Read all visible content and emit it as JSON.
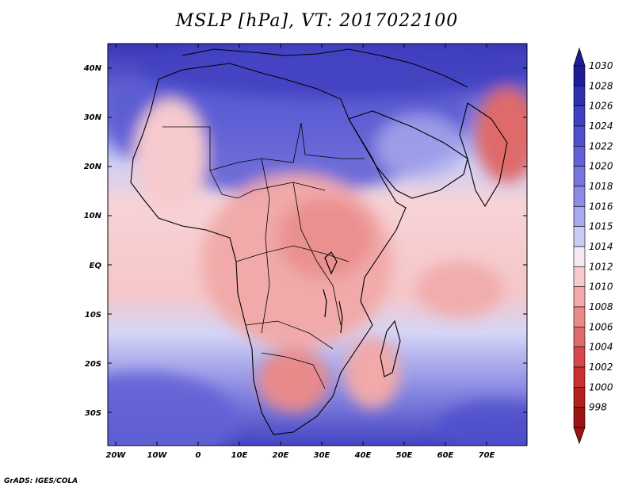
{
  "title": "MSLP [hPa], VT: 2017022100",
  "credit": "GrADS: IGES/COLA",
  "lon_ticks": [
    "20W",
    "10W",
    "0",
    "10E",
    "20E",
    "30E",
    "40E",
    "50E",
    "60E",
    "70E"
  ],
  "lat_ticks": [
    "40N",
    "30N",
    "20N",
    "10N",
    "EQ",
    "10S",
    "20S",
    "30S"
  ],
  "colorbar": {
    "levels": [
      "1030",
      "1028",
      "1026",
      "1024",
      "1022",
      "1020",
      "1018",
      "1016",
      "1015",
      "1014",
      "1012",
      "1010",
      "1008",
      "1006",
      "1004",
      "1002",
      "1000",
      "998"
    ],
    "colors": [
      "#201c98",
      "#2f30b0",
      "#4040c0",
      "#5050cc",
      "#6262d6",
      "#7575dd",
      "#8c8ce4",
      "#a9a9ee",
      "#cacaf5",
      "#f4eaf0",
      "#f7cbcd",
      "#f1a9a9",
      "#e88a8a",
      "#df6a6a",
      "#d84848",
      "#ca3030",
      "#b41f1f",
      "#9c1414"
    ]
  },
  "regions": {
    "high_north": "#5a5ad2",
    "high_south": "#6262d6",
    "low_interior": "#f1a9a9",
    "low_kalahari": "#e88a8a",
    "low_india": "#df6a6a"
  }
}
